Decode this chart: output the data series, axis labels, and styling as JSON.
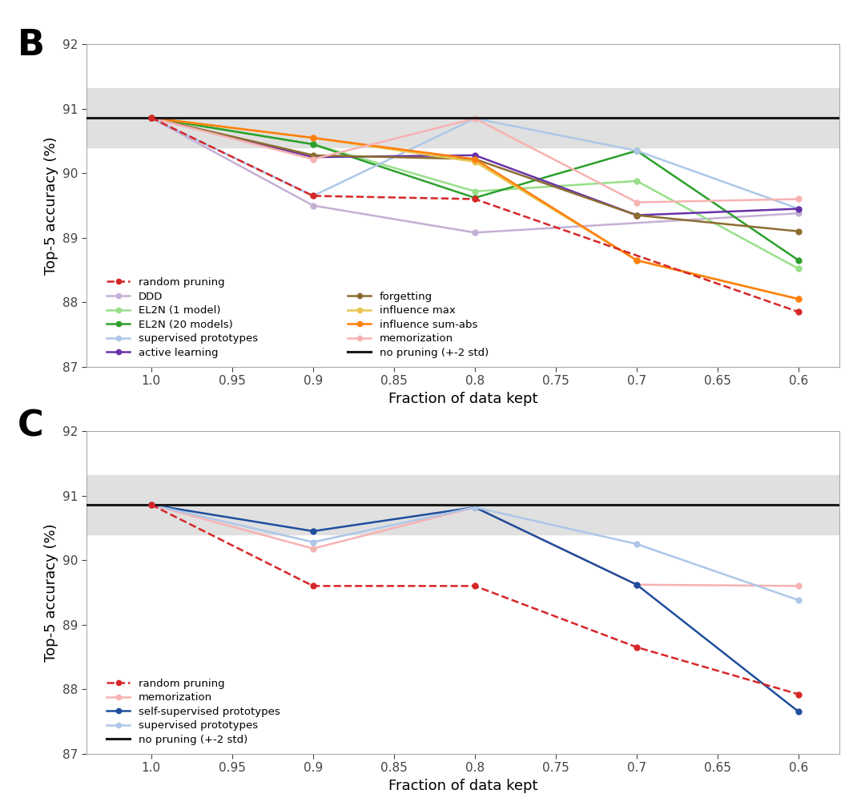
{
  "x": [
    1.0,
    0.9,
    0.8,
    0.7,
    0.6
  ],
  "no_pruning_mean": 90.86,
  "no_pruning_std_upper": 91.32,
  "no_pruning_std_lower": 90.4,
  "panel_B": {
    "random_pruning": [
      90.86,
      89.65,
      89.6,
      null,
      87.85
    ],
    "DDD": [
      90.86,
      89.5,
      89.08,
      null,
      89.38
    ],
    "EL2N_1model": [
      90.86,
      90.45,
      89.72,
      89.88,
      88.52
    ],
    "EL2N_20models": [
      90.86,
      90.45,
      89.62,
      90.35,
      88.65
    ],
    "supervised_prototypes": [
      90.86,
      89.65,
      90.85,
      90.35,
      89.45
    ],
    "active_learning": [
      90.86,
      90.25,
      90.28,
      89.35,
      89.45
    ],
    "forgetting": [
      90.86,
      90.28,
      90.22,
      89.35,
      89.1
    ],
    "influence_max": [
      90.86,
      90.55,
      90.18,
      88.65,
      88.05
    ],
    "influence_sum_abs": [
      90.86,
      90.55,
      90.22,
      88.65,
      88.05
    ],
    "memorization": [
      90.86,
      90.22,
      90.85,
      89.55,
      89.6
    ]
  },
  "panel_C": {
    "random_pruning": [
      90.86,
      89.6,
      89.6,
      88.65,
      87.92
    ],
    "memorization": [
      90.86,
      90.18,
      90.82,
      89.62,
      89.6
    ],
    "self_supervised_prototypes": [
      90.86,
      90.45,
      90.82,
      89.62,
      87.65
    ],
    "supervised_prototypes": [
      90.86,
      90.28,
      90.82,
      90.25,
      89.38
    ]
  },
  "colors": {
    "random_pruning": "#d62728",
    "DDD": "#c5b0d5",
    "EL2N_1model": "#98df8a",
    "EL2N_20models": "#2ca02c",
    "supervised_prototypes": "#aec7e8",
    "active_learning": "#6832a8",
    "forgetting": "#8c6d31",
    "influence_max": "#e8c44e",
    "influence_sum_abs": "#ff7f0e",
    "memorization": "#f7b2b2",
    "self_supervised_prototypes": "#1f4e9c",
    "no_pruning": "#1a1a1a"
  },
  "shade_color": "#e0e0e0",
  "background_color": "#ffffff"
}
